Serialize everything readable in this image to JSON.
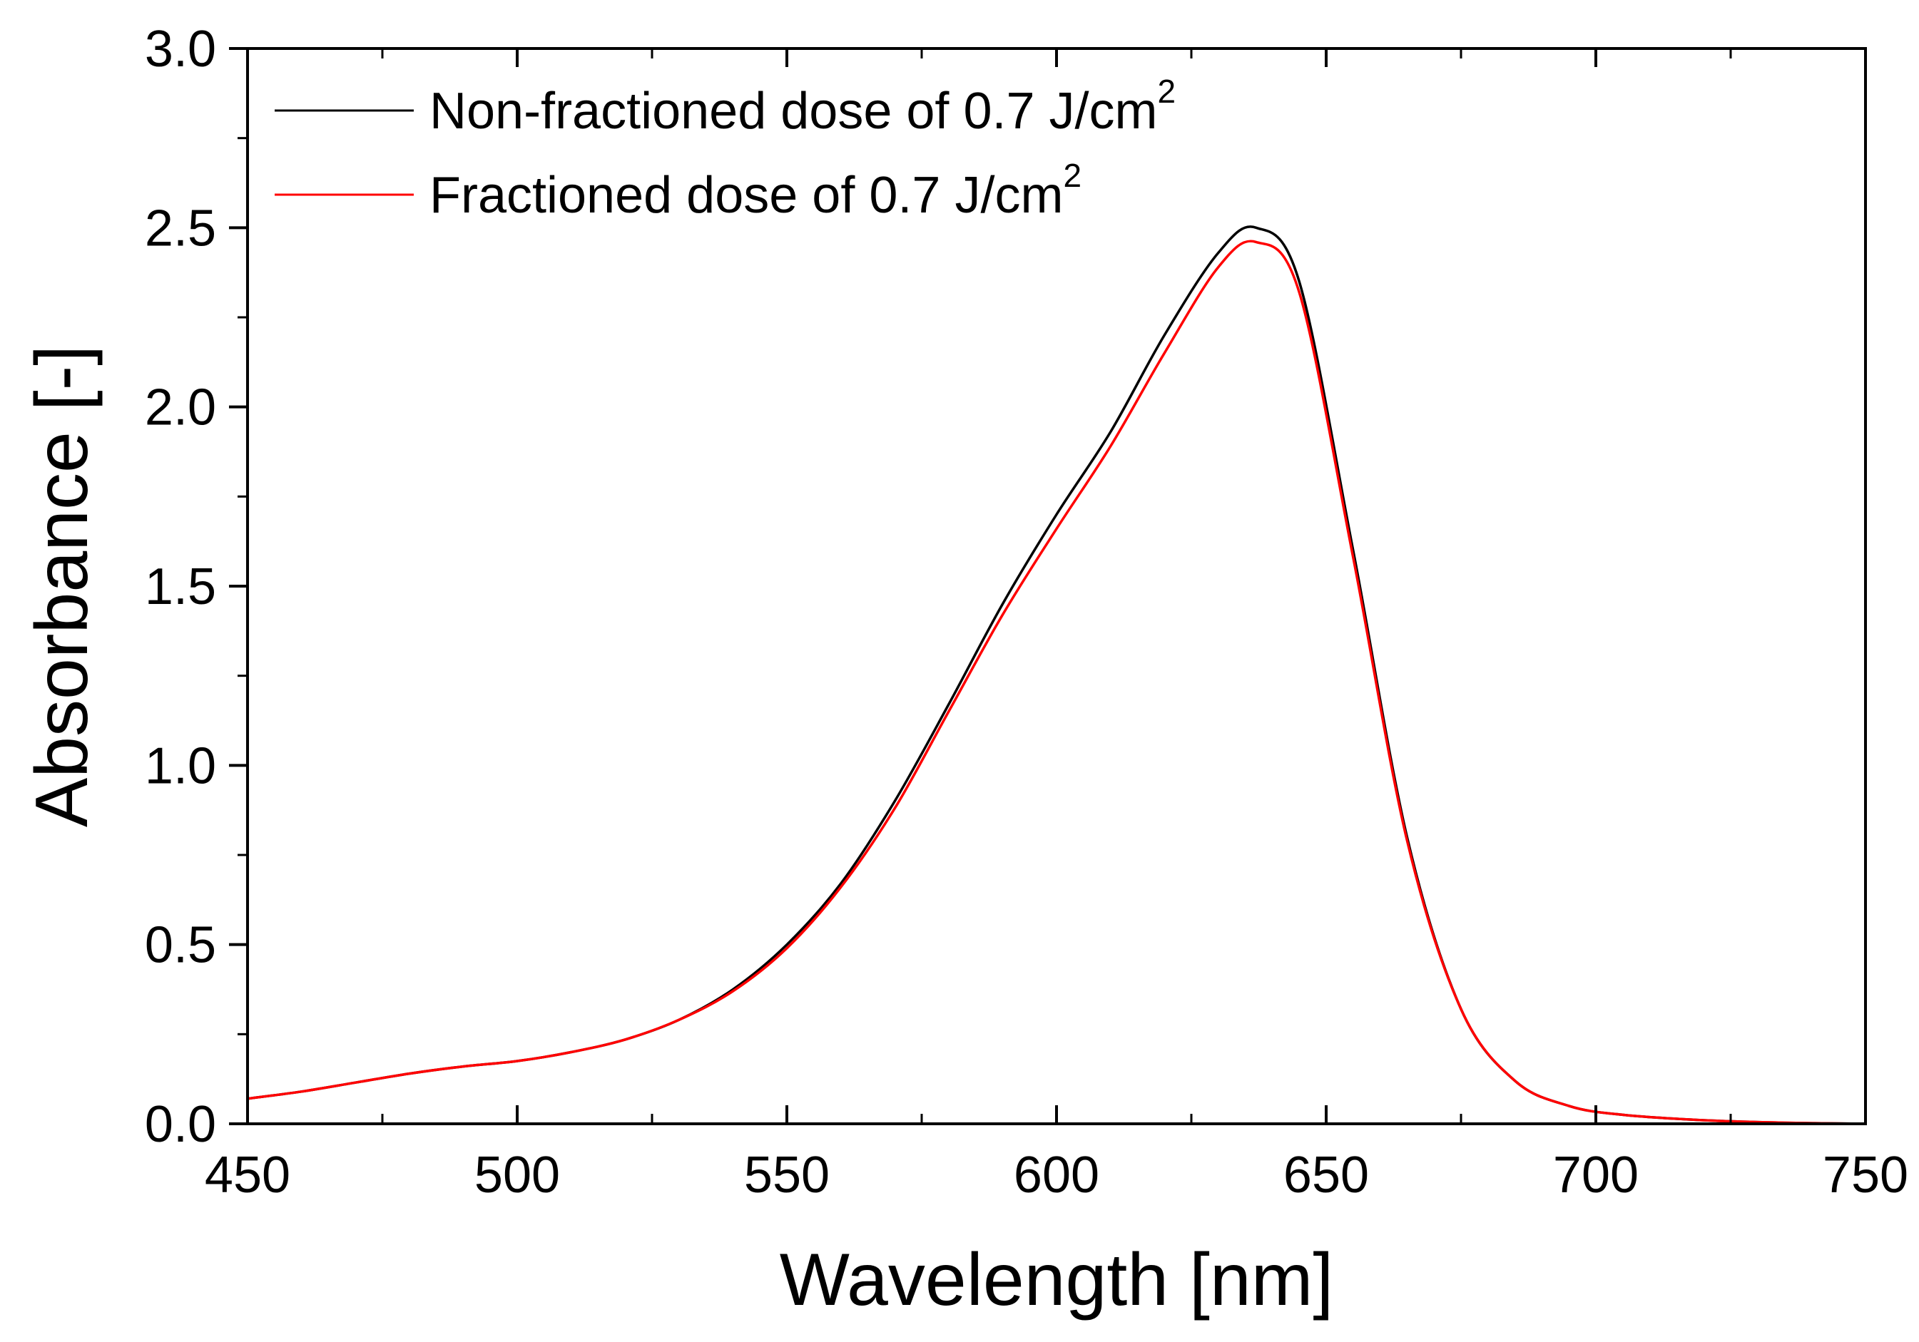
{
  "chart_data": {
    "type": "line",
    "title": "",
    "xlabel": "Wavelength [nm]",
    "ylabel": "Absorbance [-]",
    "xlim": [
      450,
      750
    ],
    "ylim": [
      0.0,
      3.0
    ],
    "x_ticks": [
      450,
      500,
      550,
      600,
      650,
      700,
      750
    ],
    "x_tick_labels": [
      "450",
      "500",
      "550",
      "600",
      "650",
      "700",
      "750"
    ],
    "y_ticks": [
      0.0,
      0.5,
      1.0,
      1.5,
      2.0,
      2.5,
      3.0
    ],
    "y_tick_labels": [
      "0.0",
      "0.5",
      "1.0",
      "1.5",
      "2.0",
      "2.5",
      "3.0"
    ],
    "grid": false,
    "legend_position": "top-left",
    "legend": [
      {
        "prefix": "Non-fractioned dose of 0.7 J/cm",
        "sup": "2"
      },
      {
        "prefix": "Fractioned dose of 0.7 J/cm",
        "sup": "2"
      }
    ],
    "series": [
      {
        "name": "Non-fractioned dose of 0.7 J/cm2",
        "color": "#000000",
        "x": [
          450,
          460,
          470,
          480,
          490,
          500,
          510,
          520,
          530,
          540,
          550,
          560,
          570,
          580,
          590,
          600,
          610,
          620,
          630,
          637,
          645,
          655,
          665,
          675,
          685,
          695,
          705,
          720,
          735,
          750
        ],
        "y": [
          0.07,
          0.09,
          0.115,
          0.14,
          0.16,
          0.175,
          0.2,
          0.235,
          0.29,
          0.375,
          0.5,
          0.67,
          0.9,
          1.17,
          1.45,
          1.7,
          1.93,
          2.2,
          2.43,
          2.5,
          2.35,
          1.6,
          0.8,
          0.32,
          0.12,
          0.05,
          0.025,
          0.01,
          0.003,
          0.0
        ]
      },
      {
        "name": "Fractioned dose of 0.7 J/cm2",
        "color": "#ff0000",
        "x": [
          450,
          460,
          470,
          480,
          490,
          500,
          510,
          520,
          530,
          540,
          550,
          560,
          570,
          580,
          590,
          600,
          610,
          620,
          630,
          637,
          645,
          655,
          665,
          675,
          685,
          695,
          705,
          720,
          735,
          750
        ],
        "y": [
          0.07,
          0.09,
          0.115,
          0.14,
          0.16,
          0.175,
          0.2,
          0.235,
          0.29,
          0.37,
          0.49,
          0.66,
          0.88,
          1.15,
          1.42,
          1.66,
          1.89,
          2.15,
          2.39,
          2.46,
          2.32,
          1.58,
          0.79,
          0.32,
          0.12,
          0.05,
          0.025,
          0.01,
          0.003,
          0.0
        ]
      }
    ]
  }
}
